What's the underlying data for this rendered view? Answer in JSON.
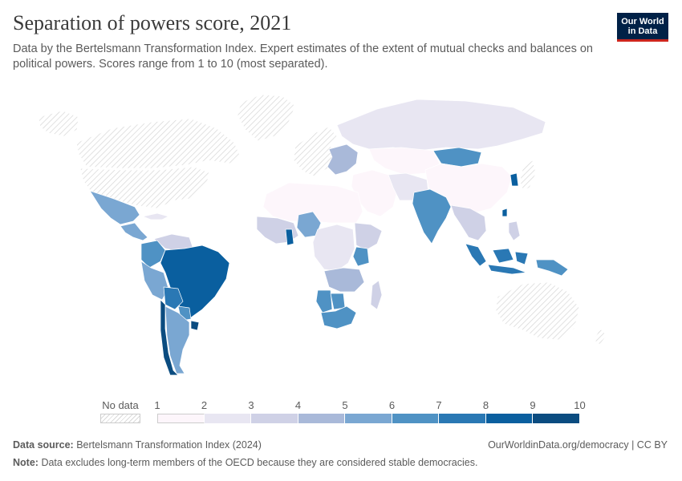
{
  "header": {
    "title": "Separation of powers score, 2021",
    "subtitle": "Data by the Bertelsmann Transformation Index. Expert estimates of the extent of mutual checks and balances on political powers. Scores range from 1 to 10 (most separated)."
  },
  "logo": {
    "line1": "Our World",
    "line2": "in Data"
  },
  "legend": {
    "no_data_label": "No data",
    "ticks": [
      "1",
      "2",
      "3",
      "4",
      "5",
      "6",
      "7",
      "8",
      "9",
      "10"
    ],
    "colors": [
      "#fdf6fb",
      "#e8e6f2",
      "#cfd1e6",
      "#a9b9d9",
      "#7aa7d2",
      "#4f92c4",
      "#2a78b4",
      "#0a5f9f",
      "#0b4c80",
      "#083358"
    ],
    "no_data_color": "#d9d9d9"
  },
  "footer": {
    "source_label": "Data source:",
    "source_text": "Bertelsmann Transformation Index (2024)",
    "url_text": "OurWorldinData.org/democracy | CC BY",
    "note_label": "Note:",
    "note_text": "Data excludes long-term members of the OECD because they are considered stable democracies."
  },
  "map": {
    "regions": [
      {
        "name": "Greenland",
        "score": null
      },
      {
        "name": "Canada",
        "score": null
      },
      {
        "name": "USA",
        "score": null
      },
      {
        "name": "Mexico",
        "score": 5.5
      },
      {
        "name": "Central America",
        "score": 5
      },
      {
        "name": "Cuba",
        "score": 2
      },
      {
        "name": "Venezuela",
        "score": 3
      },
      {
        "name": "Colombia",
        "score": 6
      },
      {
        "name": "Peru",
        "score": 5
      },
      {
        "name": "Brazil",
        "score": 8
      },
      {
        "name": "Bolivia",
        "score": 7
      },
      {
        "name": "Argentina",
        "score": 5
      },
      {
        "name": "Chile",
        "score": 9
      },
      {
        "name": "Uruguay",
        "score": 9.5
      },
      {
        "name": "Paraguay",
        "score": 6
      },
      {
        "name": "Europe (OECD)",
        "score": null
      },
      {
        "name": "Eastern Europe",
        "score": 4.5
      },
      {
        "name": "Russia",
        "score": 2
      },
      {
        "name": "Kazakhstan",
        "score": 1
      },
      {
        "name": "Mongolia",
        "score": 6
      },
      {
        "name": "China",
        "score": 1
      },
      {
        "name": "Japan",
        "score": null
      },
      {
        "name": "Taiwan",
        "score": 8
      },
      {
        "name": "South Korea",
        "score": 8
      },
      {
        "name": "Middle East",
        "score": 1.5
      },
      {
        "name": "Iran",
        "score": 2
      },
      {
        "name": "India",
        "score": 6
      },
      {
        "name": "Southeast Asia",
        "score": 3
      },
      {
        "name": "Indonesia",
        "score": 7.5
      },
      {
        "name": "Papua New Guinea",
        "score": 6
      },
      {
        "name": "Australia",
        "score": null
      },
      {
        "name": "New Zealand",
        "score": null
      },
      {
        "name": "North Africa",
        "score": 1.5
      },
      {
        "name": "West Africa",
        "score": 3
      },
      {
        "name": "Nigeria",
        "score": 5
      },
      {
        "name": "Ghana",
        "score": 8
      },
      {
        "name": "Central Africa",
        "score": 2
      },
      {
        "name": "East Africa",
        "score": 3
      },
      {
        "name": "Kenya",
        "score": 6
      },
      {
        "name": "Southern Africa",
        "score": 4
      },
      {
        "name": "Namibia",
        "score": 6
      },
      {
        "name": "Botswana",
        "score": 6.5
      },
      {
        "name": "South Africa",
        "score": 6.5
      },
      {
        "name": "Madagascar",
        "score": 3
      }
    ]
  }
}
